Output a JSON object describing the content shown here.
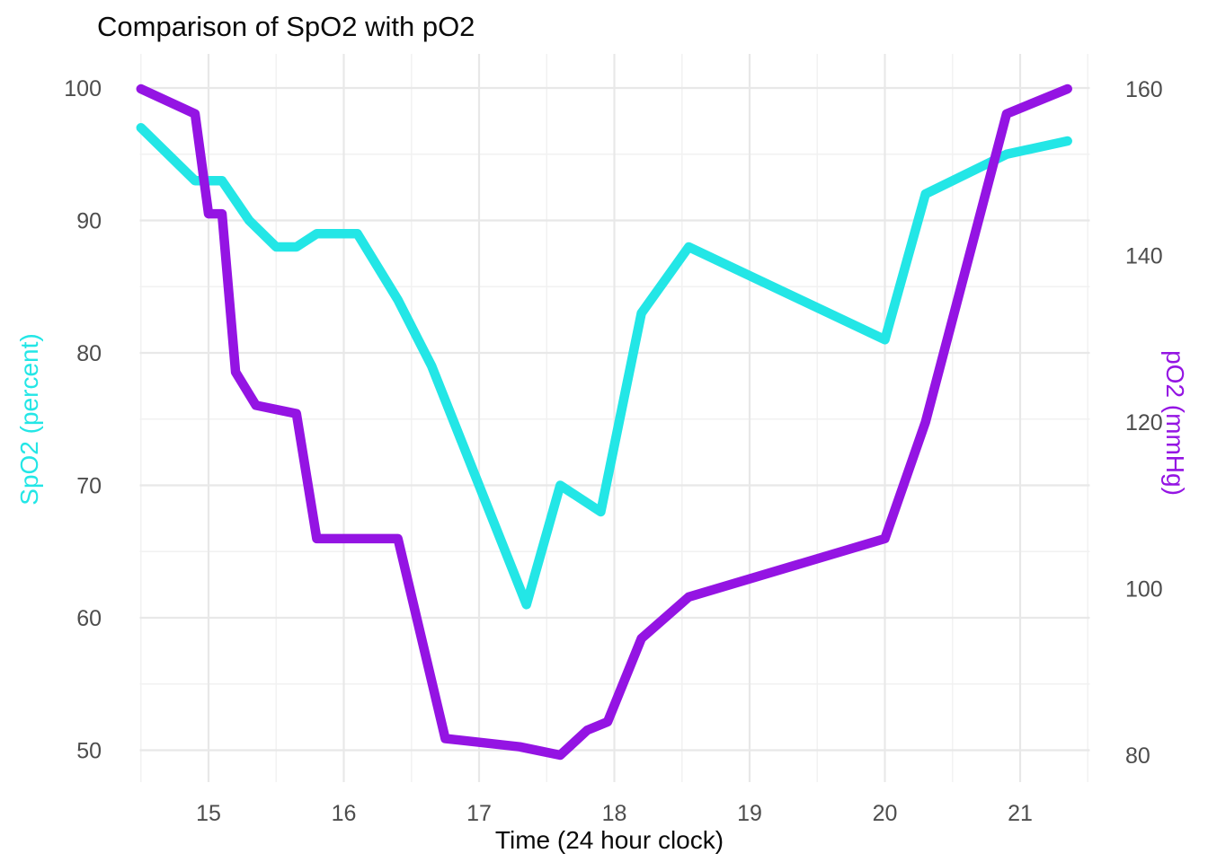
{
  "title": "Comparison of SpO2 with pO2",
  "x_axis": {
    "label": "Time (24 hour clock)"
  },
  "left_axis_label": "SpO2 (percent)",
  "right_axis_label": "pO2 (mmHg)",
  "colors": {
    "spo2": "#23E6E6",
    "po2": "#9414E3",
    "grid_major": "#E8E8E8",
    "grid_minor": "#F1F1F1",
    "tick_text": "#4d4d4d"
  },
  "chart_data": {
    "type": "line",
    "title": "Comparison of SpO2 with pO2",
    "xlabel": "Time (24 hour clock)",
    "x_ticks": [
      15,
      16,
      17,
      18,
      19,
      20,
      21
    ],
    "x_minor_ticks": [
      14.5,
      15.5,
      16.5,
      17.5,
      18.5,
      19.5,
      20.5,
      21.5
    ],
    "xlim": [
      14.48,
      21.52
    ],
    "grid": true,
    "legend": "none",
    "left_axis": {
      "label": "SpO2 (percent)",
      "ticks": [
        50,
        60,
        70,
        80,
        90,
        100
      ],
      "minor_ticks": [
        55,
        65,
        75,
        85,
        95
      ],
      "lim": [
        47.5,
        102.6
      ]
    },
    "right_axis": {
      "label": "pO2 (mmHg)",
      "ticks": [
        80,
        100,
        120,
        140,
        160
      ],
      "lim": [
        76.8,
        164.2
      ]
    },
    "series": [
      {
        "name": "SpO2",
        "axis": "left",
        "units": "percent",
        "color": "#23E6E6",
        "points": [
          [
            14.5,
            97
          ],
          [
            14.9,
            93
          ],
          [
            15.1,
            93
          ],
          [
            15.3,
            90
          ],
          [
            15.5,
            88
          ],
          [
            15.65,
            88
          ],
          [
            15.8,
            89
          ],
          [
            16.1,
            89
          ],
          [
            16.4,
            84
          ],
          [
            16.65,
            79
          ],
          [
            17.35,
            61
          ],
          [
            17.6,
            70
          ],
          [
            17.9,
            68
          ],
          [
            18.2,
            83
          ],
          [
            18.55,
            88
          ],
          [
            20.0,
            81
          ],
          [
            20.3,
            92
          ],
          [
            20.9,
            95
          ],
          [
            21.35,
            96
          ]
        ]
      },
      {
        "name": "pO2",
        "axis": "right",
        "units": "mmHg",
        "color": "#9414E3",
        "points": [
          [
            14.5,
            160
          ],
          [
            14.9,
            157
          ],
          [
            15.0,
            145
          ],
          [
            15.1,
            145
          ],
          [
            15.2,
            126
          ],
          [
            15.35,
            122
          ],
          [
            15.65,
            121
          ],
          [
            15.8,
            106
          ],
          [
            16.4,
            106
          ],
          [
            16.75,
            82
          ],
          [
            17.3,
            81
          ],
          [
            17.6,
            80
          ],
          [
            17.8,
            83
          ],
          [
            17.95,
            84
          ],
          [
            18.2,
            94
          ],
          [
            18.55,
            99
          ],
          [
            20.0,
            106
          ],
          [
            20.3,
            120
          ],
          [
            20.9,
            157
          ],
          [
            21.35,
            160
          ]
        ]
      }
    ]
  }
}
